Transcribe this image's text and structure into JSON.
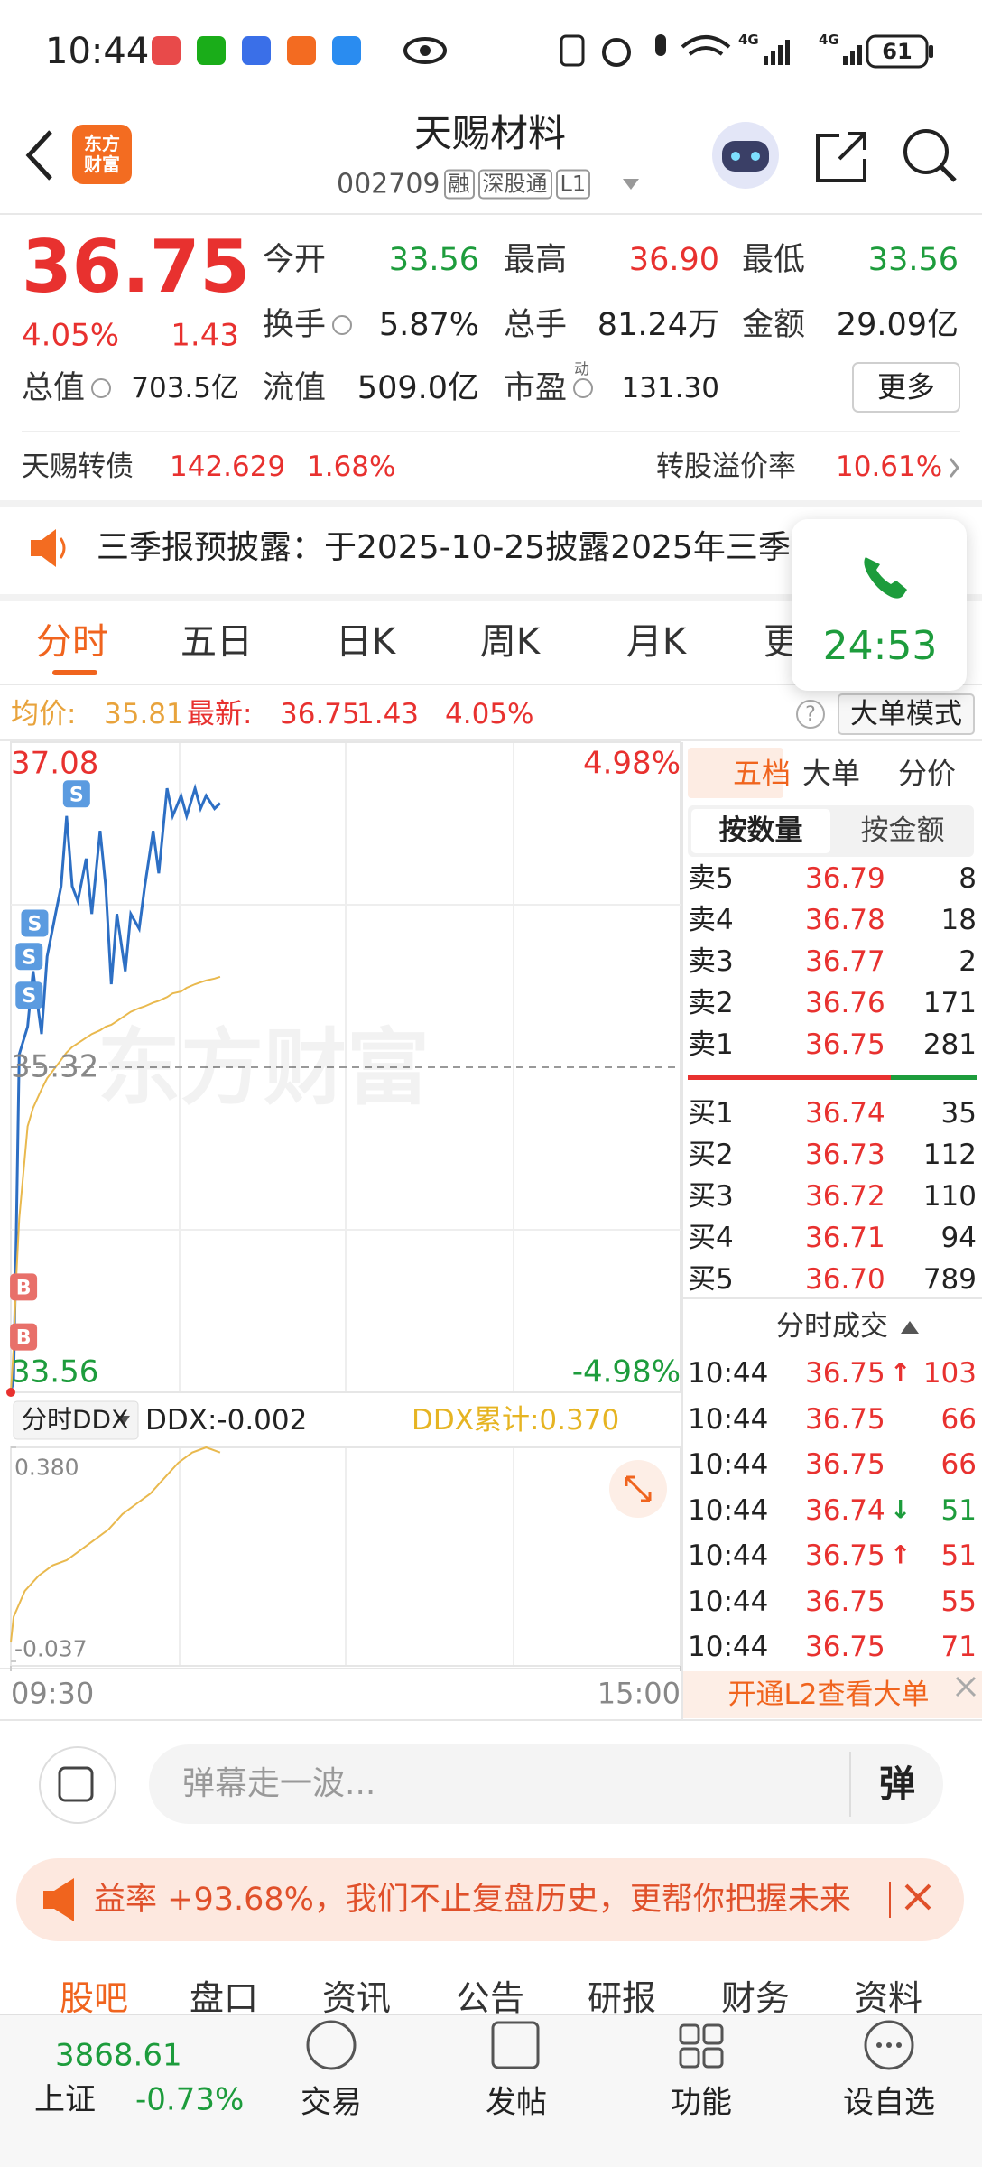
{
  "status_bar": {
    "time": "10:44",
    "network": [
      "4G",
      "4G"
    ],
    "battery": "61"
  },
  "header": {
    "logo": "东方财富",
    "title": "天赐材料",
    "code": "002709",
    "tags": [
      "融",
      "深股通",
      "L1"
    ]
  },
  "quote": {
    "price": "36.75",
    "change_pct": "4.05%",
    "change": "1.43",
    "fields": [
      {
        "label": "今开",
        "value": "33.56",
        "color": "#1d9c3c"
      },
      {
        "label": "最高",
        "value": "36.90",
        "color": "#e8312f"
      },
      {
        "label": "最低",
        "value": "33.56",
        "color": "#1d9c3c"
      },
      {
        "label": "换手",
        "value": "5.87%",
        "color": "#222222"
      },
      {
        "label": "总手",
        "value": "81.24万",
        "color": "#222222"
      },
      {
        "label": "金额",
        "value": "29.09亿",
        "color": "#222222"
      },
      {
        "label": "总值",
        "value": "703.5亿",
        "color": "#222222"
      },
      {
        "label": "流值",
        "value": "509.0亿",
        "color": "#222222"
      },
      {
        "label": "市盈",
        "value": "131.30",
        "color": "#222222"
      }
    ],
    "pe_sup": "动",
    "more": "更多"
  },
  "bond": {
    "name": "天赐转债",
    "price": "142.629",
    "pct": "1.68%",
    "premium_label": "转股溢价率",
    "premium": "10.61%"
  },
  "notice": "三季报预披露：于2025-10-25披露2025年三季",
  "call_timer": "24:53",
  "tabs": [
    "分时",
    "五日",
    "日K",
    "周K",
    "月K",
    "更"
  ],
  "info": {
    "avg_label": "均价:",
    "avg": "35.81",
    "last_label": "最新:",
    "last": "36.75",
    "change": "1.43",
    "pct": "4.05%",
    "help": "?",
    "mode": "大单模式"
  },
  "watermark": "东方财富",
  "chart_data": [
    {
      "type": "line",
      "x": [
        0,
        1,
        2,
        3,
        6,
        8,
        11,
        13,
        16,
        18,
        20,
        22,
        24,
        27,
        29,
        32,
        34,
        36,
        38,
        41,
        43,
        46,
        48,
        51,
        53,
        56,
        58,
        61,
        63,
        66,
        68,
        70,
        73,
        75
      ],
      "xlim": [
        0,
        240
      ],
      "xticks": [
        {
          "value": 0,
          "label": "09:30"
        },
        {
          "value": 240,
          "label": "15:00"
        }
      ],
      "ylim": [
        33.56,
        37.08
      ],
      "yticks": [
        37.08,
        35.32,
        33.56
      ],
      "y2lim": [
        -4.98,
        4.98
      ],
      "y2ticks": [
        {
          "value": 4.98,
          "label": "4.98%"
        },
        {
          "value": -4.98,
          "label": "-4.98%"
        }
      ],
      "series": [
        {
          "color": "#2d6fc4",
          "values": [
            33.56,
            33.63,
            34.47,
            35.39,
            35.54,
            35.84,
            35.5,
            35.92,
            36.15,
            36.3,
            36.68,
            36.3,
            36.22,
            36.45,
            36.15,
            36.6,
            36.3,
            35.77,
            36.15,
            35.84,
            36.15,
            36.07,
            36.3,
            36.6,
            36.37,
            36.83,
            36.68,
            36.79,
            36.68,
            36.83,
            36.72,
            36.79,
            36.72,
            36.75
          ]
        },
        {
          "color": "#e9b94e",
          "values": [
            33.56,
            33.8,
            34.2,
            34.5,
            35.0,
            35.1,
            35.2,
            35.26,
            35.32,
            35.36,
            35.4,
            35.43,
            35.45,
            35.48,
            35.5,
            35.52,
            35.54,
            35.55,
            35.57,
            35.6,
            35.62,
            35.64,
            35.65,
            35.67,
            35.68,
            35.7,
            35.72,
            35.73,
            35.75,
            35.77,
            35.78,
            35.79,
            35.8,
            35.81
          ]
        }
      ],
      "annotations": [
        {
          "x": 20,
          "y": 36.8,
          "label": "S"
        },
        {
          "x": 5,
          "y": 36.1,
          "label": "S"
        },
        {
          "x": 3,
          "y": 35.92,
          "label": "S"
        },
        {
          "x": 3,
          "y": 35.71,
          "label": "S"
        },
        {
          "x": 1,
          "y": 34.13,
          "label": "B"
        },
        {
          "x": 1,
          "y": 33.86,
          "label": "B"
        }
      ]
    },
    {
      "type": "line",
      "title": "分时DDX",
      "value_text": "DDX:-0.002",
      "cumulative_text": "DDX累计:0.370",
      "x": [
        0,
        1,
        5,
        10,
        15,
        20,
        25,
        30,
        35,
        40,
        45,
        50,
        55,
        60,
        65,
        70,
        75
      ],
      "xlim": [
        0,
        240
      ],
      "ylim": [
        -0.037,
        0.38
      ],
      "yticks": [
        {
          "value": 0.38,
          "label": "0.380"
        },
        {
          "value": -0.037,
          "label": "-0.037"
        }
      ],
      "series": [
        {
          "color": "#e9b94e",
          "values": [
            0,
            0.05,
            0.1,
            0.13,
            0.15,
            0.16,
            0.18,
            0.2,
            0.22,
            0.25,
            0.27,
            0.29,
            0.32,
            0.35,
            0.37,
            0.38,
            0.37
          ]
        }
      ]
    }
  ],
  "order_book": {
    "tabs": [
      "五档",
      "大单",
      "分价"
    ],
    "subtabs": [
      "按数量",
      "按金额"
    ],
    "sell": [
      {
        "label": "卖5",
        "price": "36.79",
        "volume": "8"
      },
      {
        "label": "卖4",
        "price": "36.78",
        "volume": "18"
      },
      {
        "label": "卖3",
        "price": "36.77",
        "volume": "2"
      },
      {
        "label": "卖2",
        "price": "36.76",
        "volume": "171"
      },
      {
        "label": "卖1",
        "price": "36.75",
        "volume": "281"
      }
    ],
    "buy": [
      {
        "label": "买1",
        "price": "36.74",
        "volume": "35"
      },
      {
        "label": "买2",
        "price": "36.73",
        "volume": "112"
      },
      {
        "label": "买3",
        "price": "36.72",
        "volume": "110"
      },
      {
        "label": "买4",
        "price": "36.71",
        "volume": "94"
      },
      {
        "label": "买5",
        "price": "36.70",
        "volume": "789"
      }
    ]
  },
  "trades": {
    "title": "分时成交",
    "rows": [
      {
        "time": "10:44",
        "price": "36.75",
        "dir": "↑",
        "volume": "103",
        "color": "#e8312f"
      },
      {
        "time": "10:44",
        "price": "36.75",
        "volume": "66",
        "color": "#e8312f"
      },
      {
        "time": "10:44",
        "price": "36.75",
        "volume": "66",
        "color": "#e8312f"
      },
      {
        "time": "10:44",
        "price": "36.74",
        "dir": "↓",
        "volume": "51",
        "color": "#1d9c3c"
      },
      {
        "time": "10:44",
        "price": "36.75",
        "dir": "↑",
        "volume": "51",
        "color": "#e8312f"
      },
      {
        "time": "10:44",
        "price": "36.75",
        "volume": "55",
        "color": "#e8312f"
      },
      {
        "time": "10:44",
        "price": "36.75",
        "volume": "71",
        "color": "#e8312f"
      }
    ],
    "l2": "开通L2查看大单"
  },
  "comment": {
    "placeholder": "弹幕走一波...",
    "button": "弹"
  },
  "banner": "益率 +93.68%，我们不止复盘历史，更帮你把握未来",
  "section_tabs": [
    "股吧",
    "盘口",
    "资讯",
    "公告",
    "研报",
    "财务",
    "资料"
  ],
  "bottom_nav": {
    "index_value": "3868.61",
    "index_name": "上证",
    "index_pct": "-0.73%",
    "items": [
      "交易",
      "发帖",
      "功能",
      "设自选"
    ]
  }
}
